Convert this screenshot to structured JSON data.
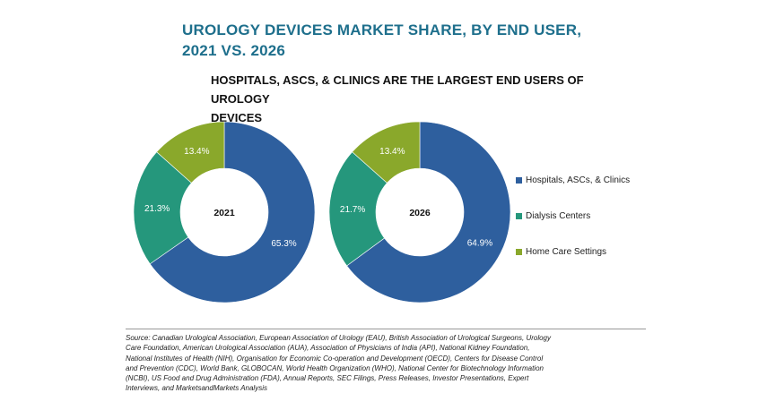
{
  "chart_data": {
    "type": "pie",
    "title": "UROLOGY DEVICES MARKET SHARE, BY END USER, 2021 VS. 2026",
    "subtitle": "HOSPITALS, ASCS, & CLINICS ARE THE LARGEST END USERS OF UROLOGY DEVICES",
    "categories": [
      "Hospitals, ASCs, & Clinics",
      "Dialysis Centers",
      "Home Care Settings"
    ],
    "colors": [
      "#2e5f9e",
      "#25977c",
      "#8aa82b"
    ],
    "charts": [
      {
        "year": "2021",
        "values": [
          65.3,
          21.3,
          13.4
        ],
        "labels": [
          "65.3%",
          "21.3%",
          "13.4%"
        ]
      },
      {
        "year": "2026",
        "values": [
          64.9,
          21.7,
          13.4
        ],
        "labels": [
          "64.9%",
          "21.7%",
          "13.4%"
        ]
      }
    ]
  },
  "header": {
    "title_line1": "UROLOGY DEVICES MARKET SHARE, BY END USER,",
    "title_line2": "2021 VS. 2026",
    "subtitle_line1": "HOSPITALS, ASCS, & CLINICS ARE THE LARGEST END USERS OF UROLOGY",
    "subtitle_line2": "DEVICES"
  },
  "source": {
    "lines": [
      "Source: Canadian Urological Association, European Association of Urology (EAU), British Association of Urological Surgeons, Urology",
      "Care Foundation, American Urological Association (AUA), Association of Physicians of India (API), National Kidney Foundation,",
      "National Institutes of Health (NIH), Organisation for Economic Co-operation and Development (OECD), Centers for Disease Control",
      "and Prevention (CDC), World Bank, GLOBOCAN, World Health Organization (WHO), National Center for Biotechnology Information",
      "(NCBI), US Food and Drug Administration (FDA), Annual Reports, SEC Filings, Press Releases, Investor Presentations, Expert",
      "Interviews, and MarketsandMarkets Analysis"
    ]
  }
}
